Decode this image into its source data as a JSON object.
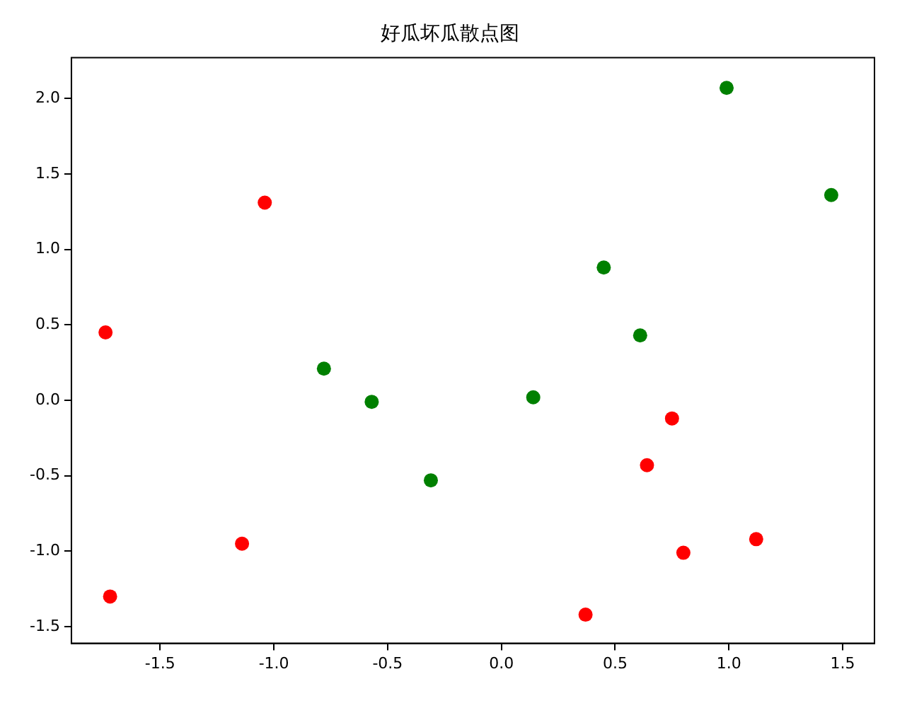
{
  "chart_data": {
    "type": "scatter",
    "title": "好瓜坏瓜散点图",
    "series": [
      {
        "color": "#ff0000",
        "x": [
          -1.74,
          -1.04,
          -1.72,
          -1.14,
          0.37,
          0.64,
          0.75,
          0.8,
          1.12
        ],
        "values": [
          0.45,
          1.31,
          -1.3,
          -0.95,
          -1.42,
          -0.43,
          -0.12,
          -1.01,
          -0.92
        ]
      },
      {
        "color": "#008000",
        "x": [
          -0.78,
          -0.57,
          -0.31,
          0.14,
          0.45,
          0.61,
          0.99,
          1.45
        ],
        "values": [
          0.21,
          -0.01,
          -0.53,
          0.02,
          0.88,
          0.43,
          2.07,
          1.36
        ]
      }
    ],
    "xlim": [
      -1.89,
      1.64
    ],
    "ylim": [
      -1.61,
      2.27
    ],
    "xticks": [
      {
        "value": -1.5,
        "label": "-1.5"
      },
      {
        "value": -1,
        "label": "-1.0"
      },
      {
        "value": -0.5,
        "label": "-0.5"
      },
      {
        "value": 0,
        "label": "0.0"
      },
      {
        "value": 0.5,
        "label": "0.5"
      },
      {
        "value": 1,
        "label": "1.0"
      },
      {
        "value": 1.5,
        "label": "1.5"
      }
    ],
    "yticks": [
      {
        "value": -1.5,
        "label": "-1.5"
      },
      {
        "value": -1,
        "label": "-1.0"
      },
      {
        "value": -0.5,
        "label": "-0.5"
      },
      {
        "value": 0,
        "label": "0.0"
      },
      {
        "value": 0.5,
        "label": "0.5"
      },
      {
        "value": 1,
        "label": "1.0"
      },
      {
        "value": 1.5,
        "label": "1.5"
      },
      {
        "value": 2,
        "label": "2.0"
      }
    ],
    "grid": false,
    "legend": false,
    "marker": "circle"
  }
}
